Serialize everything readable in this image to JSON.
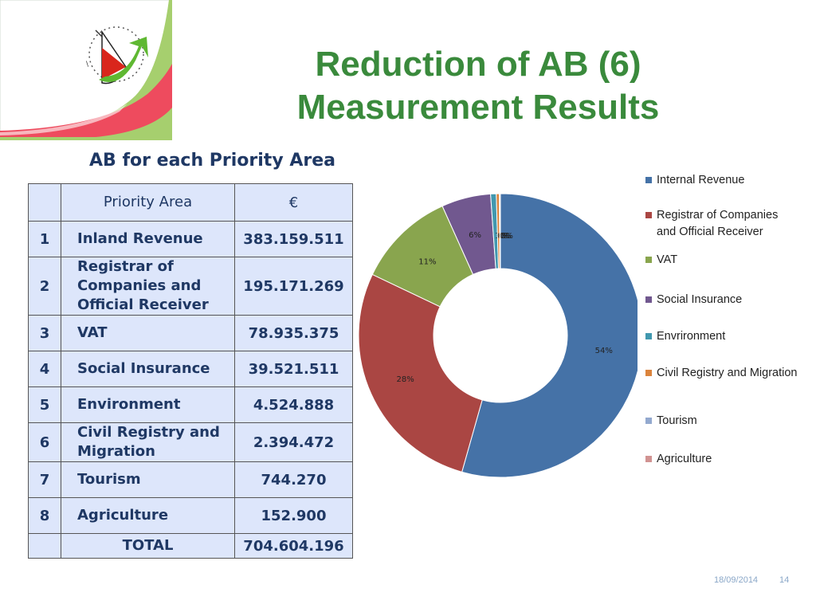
{
  "slide": {
    "title_line1": "Reduction of AB (6)",
    "title_line2": "Measurement Results",
    "subtitle": "AB for each Priority Area",
    "footer_date": "18/09/2014",
    "page_number": "14"
  },
  "table": {
    "headers": [
      "",
      "Priority Area",
      "€"
    ],
    "rows": [
      {
        "num": "1",
        "area": "Inland Revenue",
        "amount": "383.159.511"
      },
      {
        "num": "2",
        "area": "Registrar of Companies and Official Receiver",
        "amount": "195.171.269"
      },
      {
        "num": "3",
        "area": "VAT",
        "amount": "78.935.375"
      },
      {
        "num": "4",
        "area": "Social Insurance",
        "amount": "39.521.511"
      },
      {
        "num": "5",
        "area": "Environment",
        "amount": "4.524.888"
      },
      {
        "num": "6",
        "area": "Civil Registry and Migration",
        "amount": "2.394.472"
      },
      {
        "num": "7",
        "area": "Tourism",
        "amount": "744.270"
      },
      {
        "num": "8",
        "area": "Agriculture",
        "amount": "152.900"
      }
    ],
    "total_label": "TOTAL",
    "total_amount": "704.604.196"
  },
  "chart_data": {
    "type": "pie",
    "donut": true,
    "categories": [
      "Internal Revenue",
      "Registrar of Companies and Official Receiver",
      "VAT",
      "Social Insurance",
      "Envrironment",
      "Civil Registry and Migration",
      "Tourism",
      "Agriculture"
    ],
    "values": [
      383159511,
      195171269,
      78935375,
      39521511,
      4524888,
      2394472,
      744270,
      152900
    ],
    "data_labels": [
      "54%",
      "28%",
      "11%",
      "6%",
      "1%",
      "0%",
      "0%",
      "0%"
    ],
    "colors": [
      "#4572a7",
      "#aa4643",
      "#89a54e",
      "#71588f",
      "#4198af",
      "#db843d",
      "#93a9cf",
      "#d19392"
    ],
    "legend_position": "right"
  }
}
